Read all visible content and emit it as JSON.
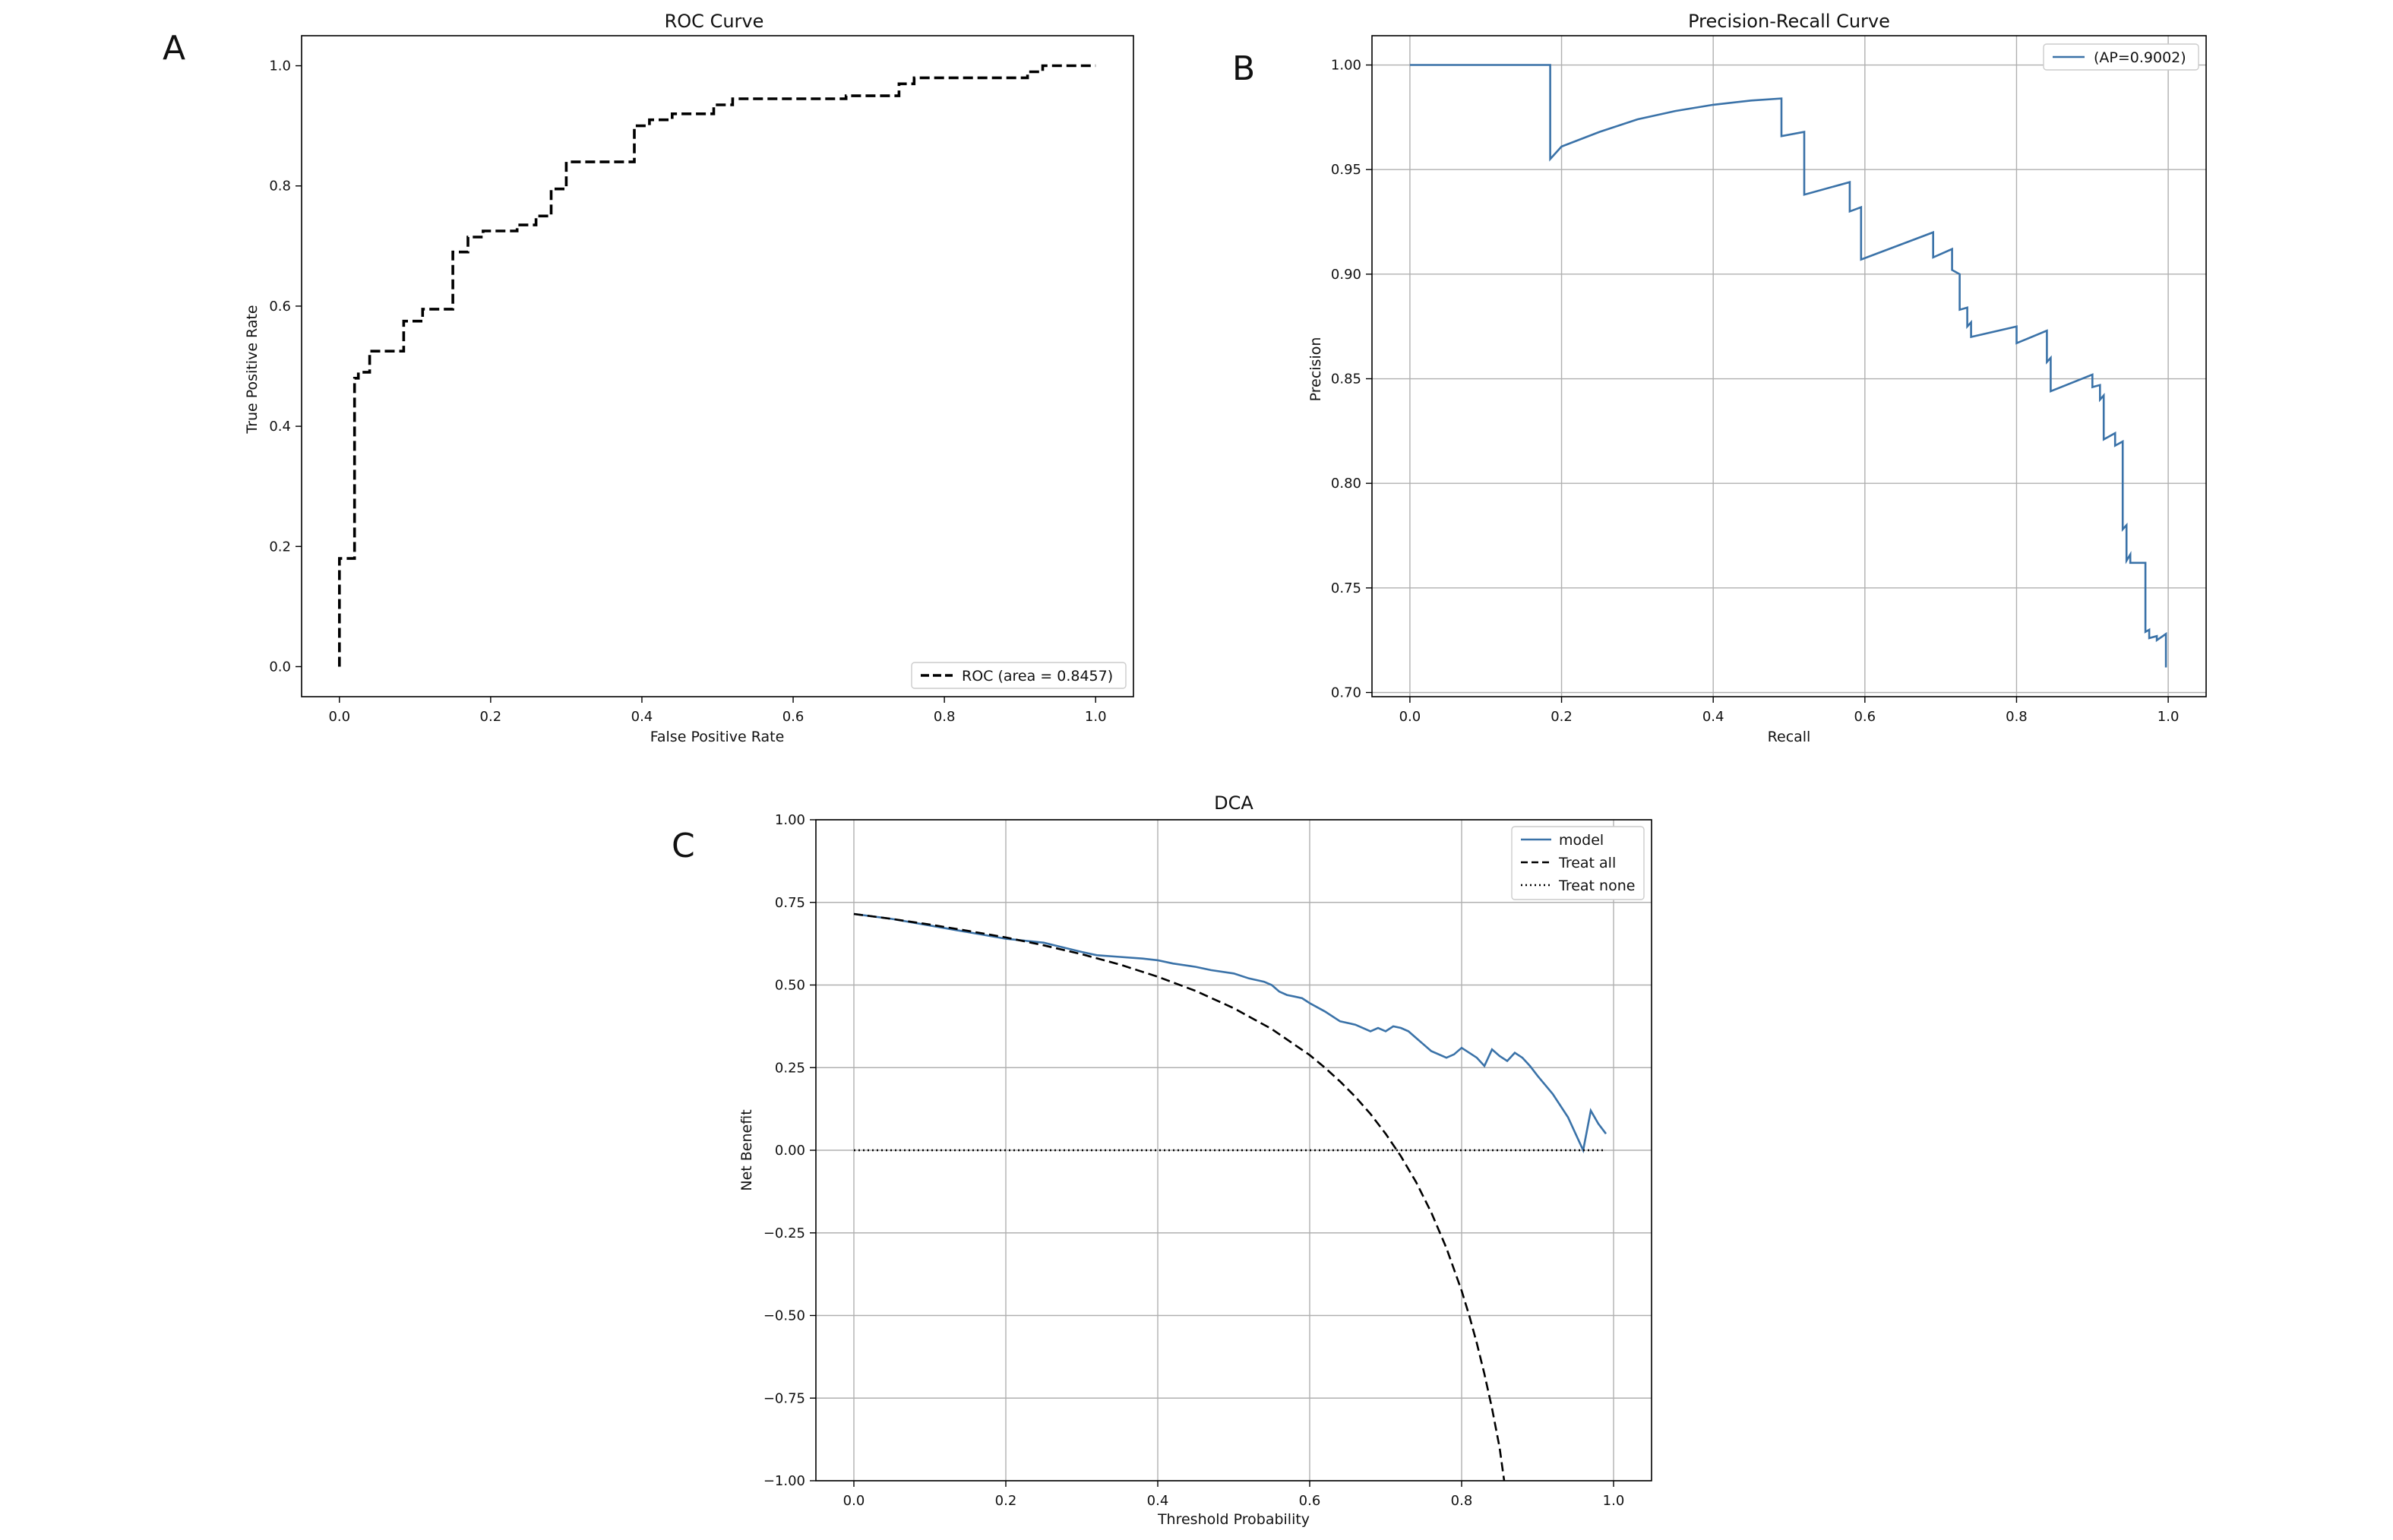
{
  "panels": {
    "A": "A",
    "B": "B",
    "C": "C"
  },
  "colors": {
    "model_blue": "#3a72a8",
    "black": "#000000",
    "grid": "#b0b0b0"
  },
  "chart_data": [
    {
      "id": "roc",
      "type": "line",
      "title": "ROC Curve",
      "xlabel": "False Positive Rate",
      "ylabel": "True Positive Rate",
      "xlim": [
        -0.05,
        1.05
      ],
      "ylim": [
        -0.05,
        1.05
      ],
      "xticks": [
        "0.0",
        "0.2",
        "0.4",
        "0.6",
        "0.8",
        "1.0"
      ],
      "yticks": [
        "0.0",
        "0.2",
        "0.4",
        "0.6",
        "0.8",
        "1.0"
      ],
      "grid": false,
      "legend": "lower right",
      "series": [
        {
          "name": "ROC (area = 0.8457)",
          "style": "dashed",
          "color": "#000000",
          "x": [
            0.0,
            0.0,
            0.02,
            0.02,
            0.025,
            0.025,
            0.04,
            0.04,
            0.085,
            0.085,
            0.11,
            0.11,
            0.15,
            0.15,
            0.17,
            0.17,
            0.19,
            0.19,
            0.235,
            0.235,
            0.26,
            0.26,
            0.28,
            0.28,
            0.3,
            0.3,
            0.39,
            0.39,
            0.41,
            0.41,
            0.44,
            0.44,
            0.495,
            0.495,
            0.52,
            0.52,
            0.67,
            0.67,
            0.74,
            0.74,
            0.76,
            0.76,
            0.91,
            0.91,
            0.93,
            0.93,
            1.0
          ],
          "y": [
            0.0,
            0.18,
            0.18,
            0.48,
            0.48,
            0.49,
            0.49,
            0.525,
            0.525,
            0.575,
            0.575,
            0.595,
            0.595,
            0.69,
            0.69,
            0.715,
            0.715,
            0.725,
            0.725,
            0.735,
            0.735,
            0.75,
            0.75,
            0.795,
            0.795,
            0.84,
            0.84,
            0.9,
            0.9,
            0.91,
            0.91,
            0.92,
            0.92,
            0.935,
            0.935,
            0.945,
            0.945,
            0.95,
            0.95,
            0.97,
            0.97,
            0.98,
            0.98,
            0.99,
            0.99,
            1.0,
            1.0
          ]
        }
      ]
    },
    {
      "id": "pr",
      "type": "line",
      "title": "Precision-Recall Curve",
      "xlabel": "Recall",
      "ylabel": "Precision",
      "xlim": [
        -0.05,
        1.05
      ],
      "ylim": [
        0.698,
        1.014
      ],
      "xticks": [
        "0.0",
        "0.2",
        "0.4",
        "0.6",
        "0.8",
        "1.0"
      ],
      "yticks": [
        "0.70",
        "0.75",
        "0.80",
        "0.85",
        "0.90",
        "0.95",
        "1.00"
      ],
      "grid": true,
      "legend": "upper right",
      "series": [
        {
          "name": "(AP=0.9002)",
          "style": "solid",
          "color": "#3a72a8",
          "x": [
            0.0,
            0.185,
            0.185,
            0.2,
            0.25,
            0.3,
            0.35,
            0.4,
            0.45,
            0.49,
            0.49,
            0.52,
            0.52,
            0.58,
            0.58,
            0.595,
            0.595,
            0.69,
            0.69,
            0.715,
            0.715,
            0.725,
            0.725,
            0.735,
            0.735,
            0.74,
            0.74,
            0.8,
            0.8,
            0.84,
            0.84,
            0.845,
            0.845,
            0.9,
            0.9,
            0.91,
            0.91,
            0.915,
            0.915,
            0.93,
            0.93,
            0.94,
            0.94,
            0.945,
            0.945,
            0.95,
            0.95,
            0.97,
            0.97,
            0.975,
            0.975,
            0.985,
            0.985,
            0.997,
            0.997
          ],
          "y": [
            1.0,
            1.0,
            0.955,
            0.961,
            0.968,
            0.974,
            0.978,
            0.981,
            0.983,
            0.984,
            0.966,
            0.968,
            0.938,
            0.944,
            0.93,
            0.932,
            0.907,
            0.92,
            0.908,
            0.912,
            0.902,
            0.9,
            0.883,
            0.884,
            0.875,
            0.877,
            0.87,
            0.875,
            0.867,
            0.873,
            0.858,
            0.86,
            0.844,
            0.852,
            0.846,
            0.847,
            0.84,
            0.842,
            0.821,
            0.824,
            0.818,
            0.82,
            0.778,
            0.78,
            0.763,
            0.766,
            0.762,
            0.762,
            0.729,
            0.73,
            0.726,
            0.727,
            0.725,
            0.728,
            0.712
          ]
        }
      ]
    },
    {
      "id": "dca",
      "type": "line",
      "title": "DCA",
      "xlabel": "Threshold Probability",
      "ylabel": "Net Benefit",
      "xlim": [
        -0.05,
        1.05
      ],
      "ylim": [
        -1.0,
        1.0
      ],
      "xticks": [
        "0.0",
        "0.2",
        "0.4",
        "0.6",
        "0.8",
        "1.0"
      ],
      "yticks": [
        "−1.00",
        "−0.75",
        "−0.50",
        "−0.25",
        "0.00",
        "0.25",
        "0.50",
        "0.75",
        "1.00"
      ],
      "grid": true,
      "legend": "upper right",
      "series": [
        {
          "name": "model",
          "style": "solid",
          "color": "#3a72a8",
          "x": [
            0.0,
            0.05,
            0.1,
            0.15,
            0.2,
            0.25,
            0.3,
            0.32,
            0.35,
            0.38,
            0.4,
            0.42,
            0.45,
            0.47,
            0.5,
            0.52,
            0.54,
            0.55,
            0.56,
            0.57,
            0.58,
            0.59,
            0.6,
            0.62,
            0.64,
            0.66,
            0.68,
            0.69,
            0.7,
            0.71,
            0.72,
            0.73,
            0.74,
            0.75,
            0.76,
            0.78,
            0.79,
            0.8,
            0.81,
            0.82,
            0.83,
            0.84,
            0.85,
            0.86,
            0.87,
            0.88,
            0.89,
            0.9,
            0.92,
            0.94,
            0.95,
            0.96,
            0.97,
            0.98,
            0.99
          ],
          "y": [
            0.715,
            0.7,
            0.68,
            0.66,
            0.64,
            0.628,
            0.6,
            0.59,
            0.585,
            0.58,
            0.575,
            0.565,
            0.555,
            0.545,
            0.535,
            0.52,
            0.51,
            0.5,
            0.48,
            0.47,
            0.465,
            0.46,
            0.445,
            0.42,
            0.39,
            0.38,
            0.36,
            0.37,
            0.36,
            0.375,
            0.37,
            0.36,
            0.34,
            0.32,
            0.3,
            0.28,
            0.29,
            0.31,
            0.295,
            0.28,
            0.255,
            0.305,
            0.285,
            0.27,
            0.295,
            0.28,
            0.255,
            0.225,
            0.17,
            0.1,
            0.05,
            0.0,
            0.12,
            0.08,
            0.05
          ]
        },
        {
          "name": "Treat all",
          "style": "dashed",
          "color": "#000000",
          "x": [
            0.0,
            0.05,
            0.1,
            0.15,
            0.2,
            0.25,
            0.3,
            0.35,
            0.4,
            0.45,
            0.5,
            0.55,
            0.6,
            0.62,
            0.64,
            0.66,
            0.68,
            0.7,
            0.72,
            0.74,
            0.76,
            0.78,
            0.8,
            0.81,
            0.82,
            0.83,
            0.84,
            0.85,
            0.856
          ],
          "y": [
            0.715,
            0.7,
            0.683,
            0.664,
            0.644,
            0.62,
            0.593,
            0.562,
            0.525,
            0.482,
            0.43,
            0.367,
            0.288,
            0.25,
            0.208,
            0.162,
            0.11,
            0.05,
            -0.018,
            -0.096,
            -0.188,
            -0.296,
            -0.425,
            -0.5,
            -0.584,
            -0.677,
            -0.781,
            -0.9,
            -1.0
          ]
        },
        {
          "name": "Treat none",
          "style": "dotted",
          "color": "#000000",
          "x": [
            0.0,
            0.99
          ],
          "y": [
            0.0,
            0.0
          ]
        }
      ]
    }
  ]
}
